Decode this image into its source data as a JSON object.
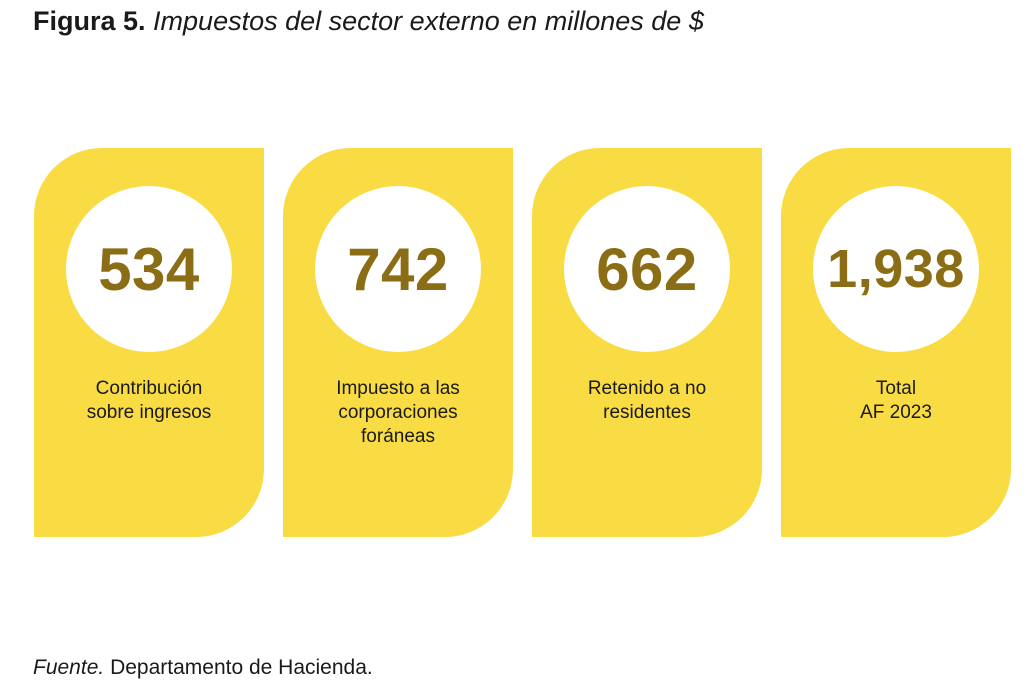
{
  "title": {
    "label": "Figura 5.",
    "text": "Impuestos del sector externo en millones de $"
  },
  "chart_data": {
    "type": "table",
    "title": "Impuestos del sector externo en millones de $",
    "categories": [
      [
        "Contribución",
        "sobre ingresos"
      ],
      [
        "Impuesto a las",
        "corporaciones",
        "foráneas"
      ],
      [
        "Retenido a no",
        "residentes"
      ],
      [
        "Total",
        "AF 2023"
      ]
    ],
    "display_values": [
      "534",
      "742",
      "662",
      "1,938"
    ],
    "values": [
      534,
      742,
      662,
      1938
    ],
    "colors": {
      "card": "#f9dc44",
      "circle": "#ffffff",
      "value": "#8a6d14"
    }
  },
  "source": {
    "label": "Fuente.",
    "text": "Departamento de Hacienda."
  }
}
